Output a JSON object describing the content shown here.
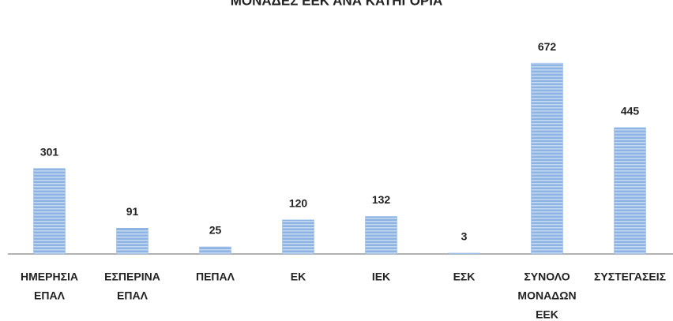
{
  "chart_data": {
    "type": "bar",
    "title": "ΜΟΝΑΔΕΣ ΕΕΚ ΑΝΑ ΚΑΤΗΓΟΡΙΑ",
    "categories": [
      [
        "ΗΜΕΡΗΣΙΑ",
        "ΕΠΑΛ"
      ],
      [
        "ΕΣΠΕΡΙΝΑ",
        "ΕΠΑΛ"
      ],
      [
        "ΠΕΠΑΛ"
      ],
      [
        "ΕΚ"
      ],
      [
        "ΙΕΚ"
      ],
      [
        "ΕΣΚ"
      ],
      [
        "ΣΥΝΟΛΟ",
        "ΜΟΝΑΔΩΝ",
        "ΕΕΚ"
      ],
      [
        "ΣΥΣΤΕΓΑΣΕΙΣ"
      ]
    ],
    "values": [
      301,
      91,
      25,
      120,
      132,
      3,
      672,
      445
    ],
    "color": "#8db4e2",
    "ylim": [
      0,
      700
    ]
  }
}
